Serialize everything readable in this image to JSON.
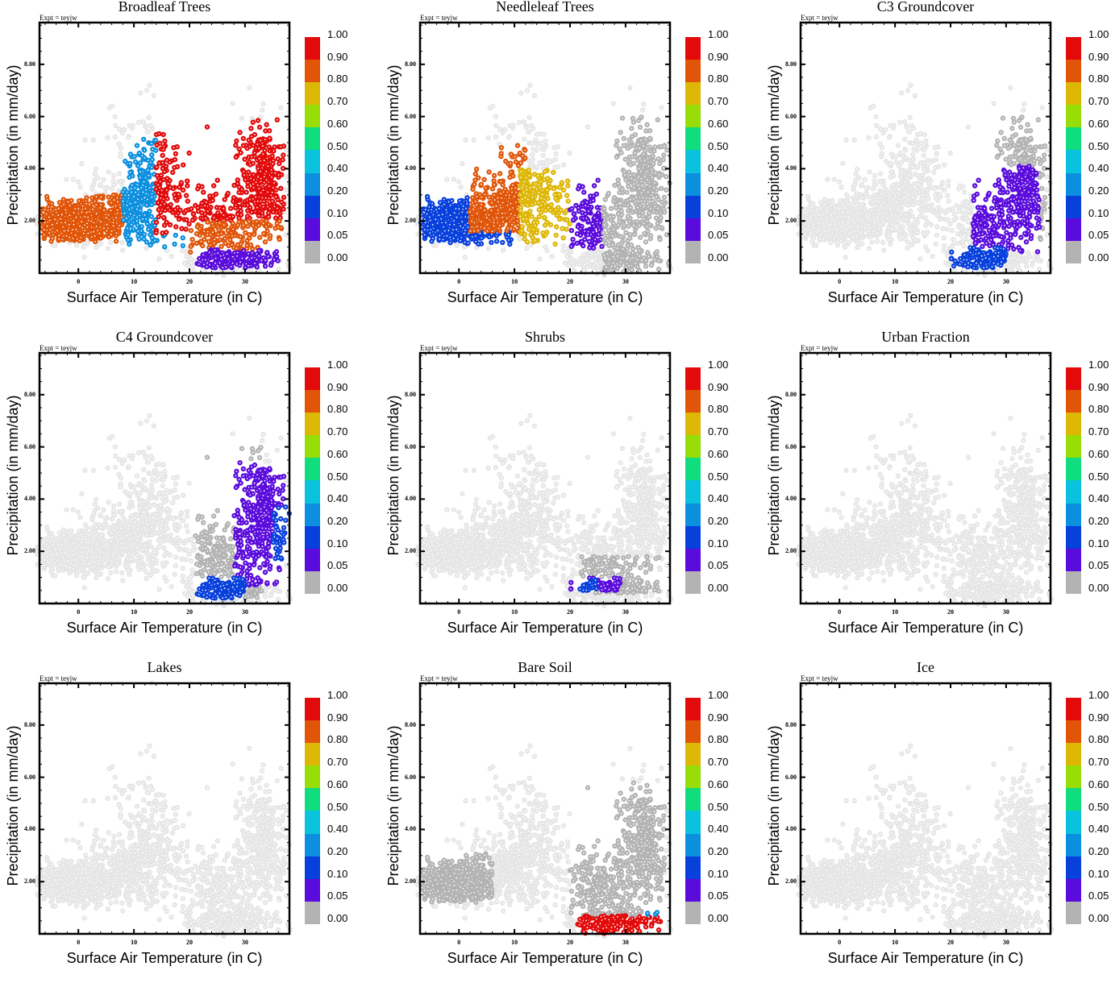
{
  "figure": {
    "experiment_label": "Expt = teyjw",
    "xlabel": "Surface Air Temperature (in C)",
    "ylabel": "Precipitation (in mm/day)",
    "x_ticks": [
      "0",
      "10",
      "20",
      "30"
    ],
    "y_ticks": [
      "2.00",
      "4.00",
      "6.00",
      "8.00"
    ],
    "colorbar": {
      "labels": [
        "1.00",
        "0.90",
        "0.80",
        "0.70",
        "0.60",
        "0.50",
        "0.40",
        "0.20",
        "0.10",
        "0.05",
        "0.00"
      ],
      "bins": [
        {
          "range": "0.90-1.00",
          "color": "#e20a0a"
        },
        {
          "range": "0.80-0.90",
          "color": "#e05508"
        },
        {
          "range": "0.70-0.80",
          "color": "#ddb705"
        },
        {
          "range": "0.60-0.70",
          "color": "#99dd08"
        },
        {
          "range": "0.50-0.60",
          "color": "#10dd7d"
        },
        {
          "range": "0.40-0.50",
          "color": "#0ac2de"
        },
        {
          "range": "0.20-0.40",
          "color": "#0b8fde"
        },
        {
          "range": "0.10-0.20",
          "color": "#0840dc"
        },
        {
          "range": "0.05-0.10",
          "color": "#5a0cdc"
        },
        {
          "range": "0.00-0.05",
          "color": "#b3b3b3"
        }
      ],
      "missing_color": "#e6e6e6"
    }
  },
  "chart_data": [
    {
      "type": "scatter",
      "title": "Broadleaf Trees",
      "xlabel": "Surface Air Temperature (in C)",
      "ylabel": "Precipitation (in mm/day)",
      "xlim": [
        -7,
        38
      ],
      "ylim": [
        0,
        9.6
      ],
      "x_ticks": [
        0,
        10,
        20,
        30
      ],
      "y_ticks": [
        2,
        4,
        6,
        8
      ],
      "color_variable": "fraction of grid cell",
      "grid": false,
      "legend": "right colorbar",
      "clusters": [
        {
          "x": [
            -7,
            8
          ],
          "y": [
            1.2,
            3.0
          ],
          "fraction_bin": "0.80-0.90"
        },
        {
          "x": [
            8,
            20
          ],
          "y": [
            1.0,
            5.2
          ],
          "fraction_bin": "0.20-0.40"
        },
        {
          "x": [
            14,
            37
          ],
          "y": [
            1.5,
            5.9
          ],
          "fraction_bin": "0.90-1.00"
        },
        {
          "x": [
            20,
            37
          ],
          "y": [
            0.8,
            2.0
          ],
          "fraction_bin": "0.80-0.90"
        },
        {
          "x": [
            21,
            36
          ],
          "y": [
            0.2,
            0.9
          ],
          "fraction_bin": "0.05-0.10"
        }
      ]
    },
    {
      "type": "scatter",
      "title": "Needleleaf Trees",
      "xlabel": "Surface Air Temperature (in C)",
      "ylabel": "Precipitation (in mm/day)",
      "xlim": [
        -7,
        38
      ],
      "ylim": [
        0,
        9.6
      ],
      "x_ticks": [
        0,
        10,
        20,
        30
      ],
      "y_ticks": [
        2,
        4,
        6,
        8
      ],
      "color_variable": "fraction of grid cell",
      "grid": false,
      "legend": "right colorbar",
      "clusters": [
        {
          "x": [
            -7,
            10
          ],
          "y": [
            1.1,
            3.0
          ],
          "fraction_bin": "0.10-0.20"
        },
        {
          "x": [
            2,
            12
          ],
          "y": [
            1.6,
            4.9
          ],
          "fraction_bin": "0.80-0.90"
        },
        {
          "x": [
            11,
            21
          ],
          "y": [
            1.1,
            4.0
          ],
          "fraction_bin": "0.70-0.80"
        },
        {
          "x": [
            20,
            27
          ],
          "y": [
            0.9,
            4.0
          ],
          "fraction_bin": "0.05-0.10"
        },
        {
          "x": [
            26,
            38
          ],
          "y": [
            0,
            6.0
          ],
          "fraction_bin": "0.00-0.05"
        }
      ]
    },
    {
      "type": "scatter",
      "title": "C3 Groundcover",
      "xlabel": "Surface Air Temperature (in C)",
      "ylabel": "Precipitation (in mm/day)",
      "xlim": [
        -7,
        38
      ],
      "ylim": [
        0,
        9.6
      ],
      "x_ticks": [
        0,
        10,
        20,
        30
      ],
      "y_ticks": [
        2,
        4,
        6,
        8
      ],
      "color_variable": "fraction of grid cell",
      "grid": false,
      "legend": "right colorbar",
      "clusters": [
        {
          "x": [
            26,
            37
          ],
          "y": [
            1.0,
            6.0
          ],
          "fraction_bin": "0.00-0.05"
        },
        {
          "x": [
            24,
            36
          ],
          "y": [
            0.8,
            4.1
          ],
          "fraction_bin": "0.05-0.10"
        },
        {
          "x": [
            20,
            30
          ],
          "y": [
            0.2,
            1.0
          ],
          "fraction_bin": "0.10-0.20"
        }
      ]
    },
    {
      "type": "scatter",
      "title": "C4 Groundcover",
      "xlabel": "Surface Air Temperature (in C)",
      "ylabel": "Precipitation (in mm/day)",
      "xlim": [
        -7,
        38
      ],
      "ylim": [
        0,
        9.6
      ],
      "x_ticks": [
        0,
        10,
        20,
        30
      ],
      "y_ticks": [
        2,
        4,
        6,
        8
      ],
      "color_variable": "fraction of grid cell",
      "grid": false,
      "legend": "right colorbar",
      "clusters": [
        {
          "x": [
            21,
            33
          ],
          "y": [
            0.2,
            6.0
          ],
          "fraction_bin": "0.00-0.05"
        },
        {
          "x": [
            28,
            37
          ],
          "y": [
            0.7,
            5.4
          ],
          "fraction_bin": "0.05-0.10"
        },
        {
          "x": [
            35,
            38
          ],
          "y": [
            1.5,
            3.7
          ],
          "fraction_bin": "0.10-0.20"
        },
        {
          "x": [
            21,
            30
          ],
          "y": [
            0.2,
            1.0
          ],
          "fraction_bin": "0.10-0.20"
        }
      ]
    },
    {
      "type": "scatter",
      "title": "Shrubs",
      "xlabel": "Surface Air Temperature (in C)",
      "ylabel": "Precipitation (in mm/day)",
      "xlim": [
        -7,
        38
      ],
      "ylim": [
        0,
        9.6
      ],
      "x_ticks": [
        0,
        10,
        20,
        30
      ],
      "y_ticks": [
        2,
        4,
        6,
        8
      ],
      "color_variable": "fraction of grid cell",
      "grid": false,
      "legend": "right colorbar",
      "clusters": [
        {
          "x": [
            22,
            36
          ],
          "y": [
            0.4,
            1.8
          ],
          "fraction_bin": "0.00-0.05"
        },
        {
          "x": [
            20,
            29
          ],
          "y": [
            0.5,
            1.0
          ],
          "fraction_bin": "0.05-0.10"
        },
        {
          "x": [
            21,
            25
          ],
          "y": [
            0.5,
            0.9
          ],
          "fraction_bin": "0.10-0.20"
        }
      ]
    },
    {
      "type": "scatter",
      "title": "Urban Fraction",
      "xlabel": "Surface Air Temperature (in C)",
      "ylabel": "Precipitation (in mm/day)",
      "xlim": [
        -7,
        38
      ],
      "ylim": [
        0,
        9.6
      ],
      "x_ticks": [
        0,
        10,
        20,
        30
      ],
      "y_ticks": [
        2,
        4,
        6,
        8
      ],
      "color_variable": "fraction of grid cell",
      "grid": false,
      "legend": "right colorbar",
      "clusters": []
    },
    {
      "type": "scatter",
      "title": "Lakes",
      "xlabel": "Surface Air Temperature (in C)",
      "ylabel": "Precipitation (in mm/day)",
      "xlim": [
        -7,
        38
      ],
      "ylim": [
        0,
        9.6
      ],
      "x_ticks": [
        0,
        10,
        20,
        30
      ],
      "y_ticks": [
        2,
        4,
        6,
        8
      ],
      "color_variable": "fraction of grid cell",
      "grid": false,
      "legend": "right colorbar",
      "clusters": []
    },
    {
      "type": "scatter",
      "title": "Bare Soil",
      "xlabel": "Surface Air Temperature (in C)",
      "ylabel": "Precipitation (in mm/day)",
      "xlim": [
        -7,
        38
      ],
      "ylim": [
        0,
        9.6
      ],
      "x_ticks": [
        0,
        10,
        20,
        30
      ],
      "y_ticks": [
        2,
        4,
        6,
        8
      ],
      "color_variable": "fraction of grid cell",
      "grid": false,
      "legend": "right colorbar",
      "clusters": [
        {
          "x": [
            -7,
            6
          ],
          "y": [
            1.2,
            3.1
          ],
          "fraction_bin": "0.00-0.05"
        },
        {
          "x": [
            20,
            37
          ],
          "y": [
            0.6,
            5.8
          ],
          "fraction_bin": "0.00-0.05"
        },
        {
          "x": [
            21,
            37
          ],
          "y": [
            0,
            0.7
          ],
          "fraction_bin": "0.90-1.00"
        },
        {
          "x": [
            33,
            37
          ],
          "y": [
            0.7,
            1.1
          ],
          "fraction_bin": "0.20-0.40"
        }
      ]
    },
    {
      "type": "scatter",
      "title": "Ice",
      "xlabel": "Surface Air Temperature (in C)",
      "ylabel": "Precipitation (in mm/day)",
      "xlim": [
        -7,
        38
      ],
      "ylim": [
        0,
        9.6
      ],
      "x_ticks": [
        0,
        10,
        20,
        30
      ],
      "y_ticks": [
        2,
        4,
        6,
        8
      ],
      "color_variable": "fraction of grid cell",
      "grid": false,
      "legend": "right colorbar",
      "clusters": []
    }
  ]
}
